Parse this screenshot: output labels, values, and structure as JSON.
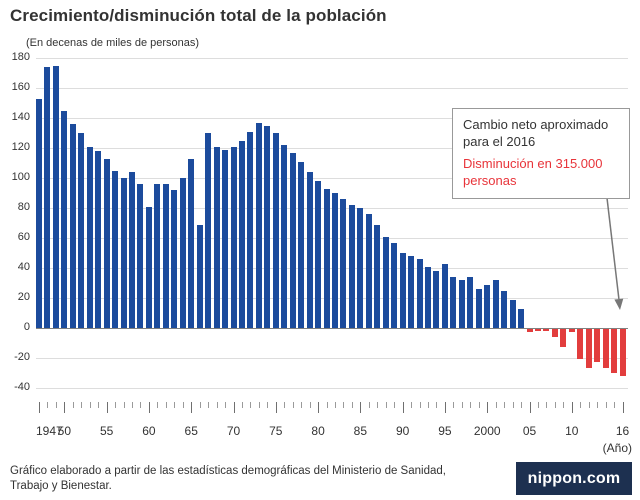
{
  "title": "Crecimiento/disminución total de la población",
  "subtitle": "(En decenas de miles de personas)",
  "x_axis_unit": "(Año)",
  "annotation": {
    "line1": "Cambio neto aproximado para el 2016",
    "line2": "Disminución en 315.000 personas"
  },
  "footer": {
    "source": "Gráfico elaborado a partir de las estadísticas demográficas del Ministerio de Sanidad, Trabajo y Bienestar.",
    "brand": "nippon.com"
  },
  "colors": {
    "positive_bar": "#1c4b9c",
    "negative_bar": "#e23d3d",
    "annotation_red": "#e8343a",
    "logo_background": "#1d3050"
  },
  "chart_data": {
    "type": "bar",
    "title": "Crecimiento/disminución total de la población",
    "y_unit": "decenas de miles de personas",
    "x_start": 1947,
    "x_end": 2016,
    "ylim": [
      -40,
      180
    ],
    "ytick_step": 20,
    "grid": true,
    "xticks": [
      {
        "year": 1947,
        "label": "1947"
      },
      {
        "year": 1950,
        "label": "50"
      },
      {
        "year": 1955,
        "label": "55"
      },
      {
        "year": 1960,
        "label": "60"
      },
      {
        "year": 1965,
        "label": "65"
      },
      {
        "year": 1970,
        "label": "70"
      },
      {
        "year": 1975,
        "label": "75"
      },
      {
        "year": 1980,
        "label": "80"
      },
      {
        "year": 1985,
        "label": "85"
      },
      {
        "year": 1990,
        "label": "90"
      },
      {
        "year": 1995,
        "label": "95"
      },
      {
        "year": 2000,
        "label": "2000"
      },
      {
        "year": 2005,
        "label": "05"
      },
      {
        "year": 2010,
        "label": "10"
      },
      {
        "year": 2016,
        "label": "16"
      }
    ],
    "values": [
      153,
      174,
      175,
      145,
      136,
      130,
      121,
      118,
      113,
      105,
      100,
      104,
      96,
      81,
      96,
      96,
      92,
      100,
      113,
      69,
      130,
      121,
      119,
      121,
      125,
      131,
      137,
      135,
      130,
      122,
      117,
      111,
      104,
      98,
      93,
      90,
      86,
      82,
      80,
      76,
      69,
      61,
      57,
      50,
      48,
      46,
      41,
      38,
      43,
      34,
      32,
      34,
      26,
      29,
      32,
      25,
      19,
      13,
      -2,
      -1,
      -1,
      -5,
      -12,
      -2,
      -20,
      -26,
      -22,
      -26,
      -29,
      -31.5
    ],
    "annotation_target": {
      "year": 2016,
      "value": -31.5
    }
  }
}
